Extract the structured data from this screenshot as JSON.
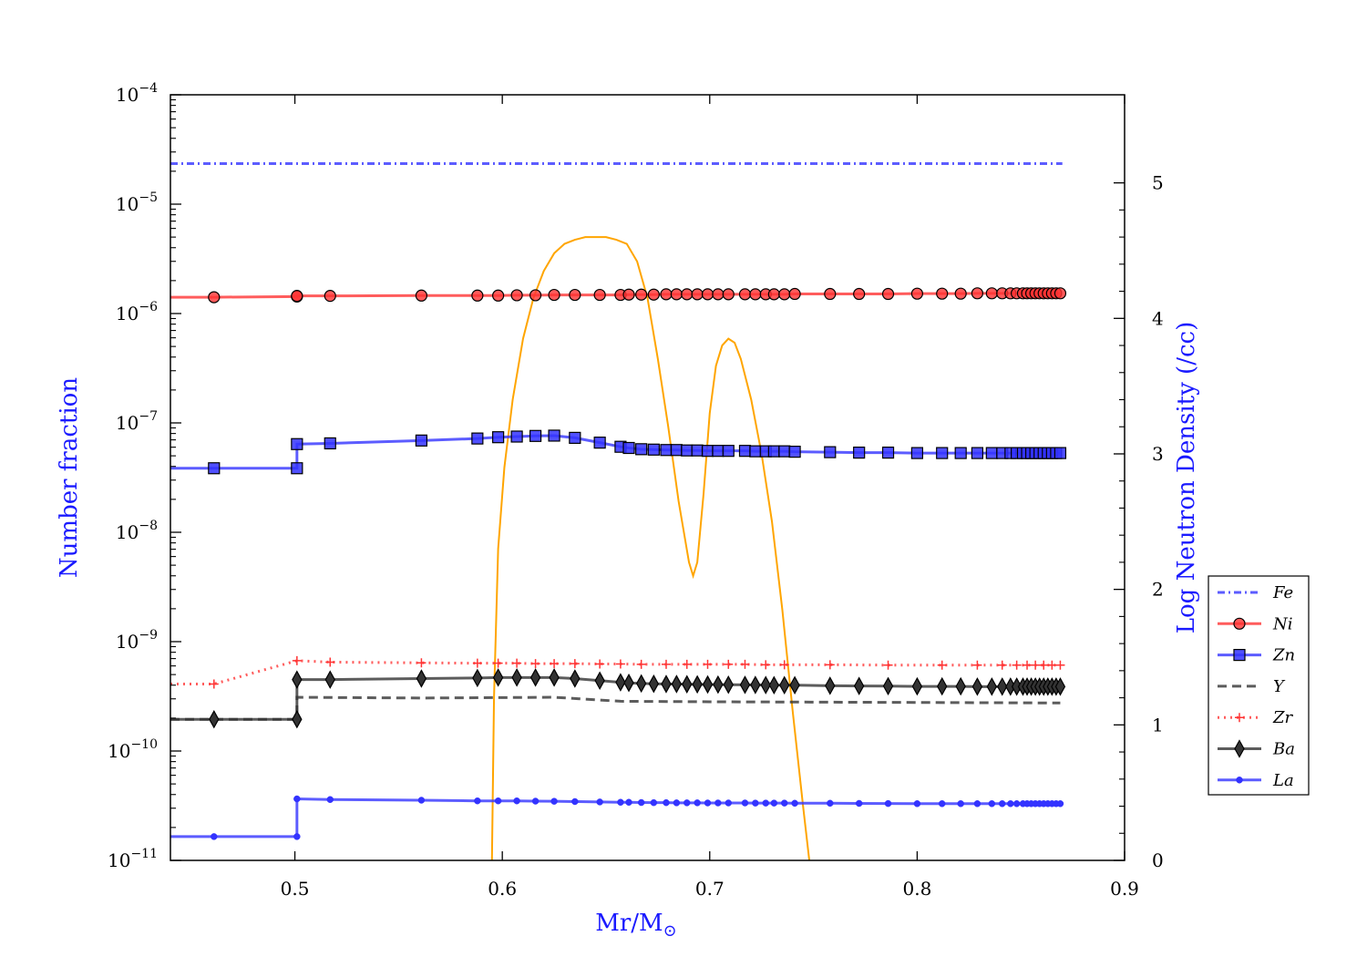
{
  "chart_data": {
    "type": "line",
    "xlabel": "Mr/M",
    "xlabel_sub": "⊙",
    "ylabel": "Number fraction",
    "y2label": "Log Neutron Density (/cc)",
    "xlim": [
      0.44,
      0.9
    ],
    "ylim_log10": [
      -11,
      -4
    ],
    "y2lim": [
      0,
      5.65
    ],
    "yscale": "log",
    "x_ticks": [
      0.5,
      0.6,
      0.7,
      0.8,
      0.9
    ],
    "x_tick_labels": [
      "0.5",
      "0.6",
      "0.7",
      "0.8",
      "0.9"
    ],
    "y_ticks_log10": [
      -11,
      -10,
      -9,
      -8,
      -7,
      -6,
      -5,
      -4
    ],
    "y_tick_base": "10",
    "y_tick_exponents": [
      "−11",
      "−10",
      "−9",
      "−8",
      "−7",
      "−6",
      "−5",
      "−4"
    ],
    "y2_ticks": [
      0,
      1,
      2,
      3,
      4,
      5
    ],
    "y2_tick_labels": [
      "0",
      "1",
      "2",
      "3",
      "4",
      "5"
    ],
    "legend_position": "lower-right",
    "colors": {
      "blue": "#3333ff",
      "red": "#ff3333",
      "dark": "#333333",
      "orange": "#ffa500"
    },
    "series": [
      {
        "name": "Fe",
        "axis": "left",
        "style": "dashdot",
        "marker": "none",
        "color": "#3333ff",
        "x": [
          0.44,
          0.87
        ],
        "y": [
          2.35e-05,
          2.35e-05
        ]
      },
      {
        "name": "Ni",
        "axis": "left",
        "style": "solid",
        "marker": "circle",
        "color": "#ff3333",
        "x": [
          0.44,
          0.461,
          0.501,
          0.501,
          0.517,
          0.561,
          0.588,
          0.598,
          0.607,
          0.616,
          0.625,
          0.635,
          0.647,
          0.657,
          0.661,
          0.667,
          0.673,
          0.679,
          0.684,
          0.689,
          0.694,
          0.699,
          0.704,
          0.709,
          0.717,
          0.722,
          0.727,
          0.731,
          0.736,
          0.741,
          0.758,
          0.772,
          0.786,
          0.8,
          0.812,
          0.821,
          0.829,
          0.836,
          0.841,
          0.845,
          0.848,
          0.851,
          0.853,
          0.855,
          0.857,
          0.859,
          0.861,
          0.863,
          0.865,
          0.867,
          0.869
        ],
        "y": [
          1.41e-06,
          1.41e-06,
          1.43e-06,
          1.45e-06,
          1.45e-06,
          1.46e-06,
          1.46e-06,
          1.46e-06,
          1.47e-06,
          1.47e-06,
          1.48e-06,
          1.48e-06,
          1.48e-06,
          1.48e-06,
          1.49e-06,
          1.49e-06,
          1.49e-06,
          1.5e-06,
          1.5e-06,
          1.5e-06,
          1.5e-06,
          1.5e-06,
          1.5e-06,
          1.5e-06,
          1.5e-06,
          1.5e-06,
          1.5e-06,
          1.5e-06,
          1.5e-06,
          1.51e-06,
          1.51e-06,
          1.51e-06,
          1.51e-06,
          1.52e-06,
          1.52e-06,
          1.52e-06,
          1.53e-06,
          1.53e-06,
          1.53e-06,
          1.53e-06,
          1.53e-06,
          1.53e-06,
          1.53e-06,
          1.53e-06,
          1.53e-06,
          1.53e-06,
          1.53e-06,
          1.53e-06,
          1.53e-06,
          1.53e-06,
          1.53e-06
        ]
      },
      {
        "name": "Zn",
        "axis": "left",
        "style": "solid",
        "marker": "square",
        "color": "#3333ff",
        "x": [
          0.44,
          0.461,
          0.501,
          0.501,
          0.517,
          0.561,
          0.588,
          0.598,
          0.607,
          0.616,
          0.625,
          0.635,
          0.647,
          0.657,
          0.661,
          0.667,
          0.673,
          0.679,
          0.684,
          0.689,
          0.694,
          0.699,
          0.704,
          0.709,
          0.717,
          0.722,
          0.727,
          0.731,
          0.736,
          0.741,
          0.758,
          0.772,
          0.786,
          0.8,
          0.812,
          0.821,
          0.829,
          0.836,
          0.841,
          0.845,
          0.848,
          0.851,
          0.853,
          0.855,
          0.857,
          0.859,
          0.861,
          0.863,
          0.865,
          0.867,
          0.869
        ],
        "y": [
          3.85e-08,
          3.85e-08,
          3.85e-08,
          6.4e-08,
          6.5e-08,
          6.9e-08,
          7.2e-08,
          7.4e-08,
          7.5e-08,
          7.6e-08,
          7.65e-08,
          7.3e-08,
          6.6e-08,
          6.05e-08,
          5.9e-08,
          5.75e-08,
          5.7e-08,
          5.65e-08,
          5.65e-08,
          5.6e-08,
          5.6e-08,
          5.55e-08,
          5.55e-08,
          5.55e-08,
          5.55e-08,
          5.5e-08,
          5.5e-08,
          5.5e-08,
          5.5e-08,
          5.45e-08,
          5.4e-08,
          5.35e-08,
          5.35e-08,
          5.3e-08,
          5.3e-08,
          5.3e-08,
          5.3e-08,
          5.3e-08,
          5.3e-08,
          5.3e-08,
          5.3e-08,
          5.3e-08,
          5.3e-08,
          5.3e-08,
          5.3e-08,
          5.3e-08,
          5.3e-08,
          5.3e-08,
          5.3e-08,
          5.3e-08,
          5.3e-08
        ]
      },
      {
        "name": "Y",
        "axis": "left",
        "style": "dashed",
        "marker": "none",
        "color": "#333333",
        "x": [
          0.44,
          0.501,
          0.501,
          0.561,
          0.625,
          0.657,
          0.7,
          0.75,
          0.8,
          0.869
        ],
        "y": [
          1.95e-10,
          1.95e-10,
          3.1e-10,
          3.05e-10,
          3.1e-10,
          2.85e-10,
          2.82e-10,
          2.8e-10,
          2.78e-10,
          2.75e-10
        ]
      },
      {
        "name": "Zr",
        "axis": "left",
        "style": "dotted",
        "marker": "plus",
        "color": "#ff3333",
        "x": [
          0.44,
          0.461,
          0.501,
          0.517,
          0.561,
          0.588,
          0.598,
          0.607,
          0.616,
          0.625,
          0.635,
          0.647,
          0.657,
          0.667,
          0.679,
          0.689,
          0.699,
          0.709,
          0.717,
          0.727,
          0.736,
          0.758,
          0.786,
          0.812,
          0.829,
          0.841,
          0.848,
          0.853,
          0.857,
          0.861,
          0.865,
          0.869
        ],
        "y": [
          4.1e-10,
          4.1e-10,
          6.7e-10,
          6.5e-10,
          6.4e-10,
          6.35e-10,
          6.35e-10,
          6.35e-10,
          6.3e-10,
          6.3e-10,
          6.3e-10,
          6.25e-10,
          6.25e-10,
          6.2e-10,
          6.2e-10,
          6.2e-10,
          6.2e-10,
          6.2e-10,
          6.2e-10,
          6.15e-10,
          6.15e-10,
          6.15e-10,
          6.1e-10,
          6.1e-10,
          6.1e-10,
          6.1e-10,
          6.1e-10,
          6.1e-10,
          6.1e-10,
          6.1e-10,
          6.1e-10,
          6.1e-10
        ]
      },
      {
        "name": "Ba",
        "axis": "left",
        "style": "solid",
        "marker": "diamond",
        "color": "#333333",
        "x": [
          0.44,
          0.461,
          0.501,
          0.501,
          0.517,
          0.561,
          0.588,
          0.598,
          0.607,
          0.616,
          0.625,
          0.635,
          0.647,
          0.657,
          0.661,
          0.667,
          0.673,
          0.679,
          0.684,
          0.689,
          0.694,
          0.699,
          0.704,
          0.709,
          0.717,
          0.722,
          0.727,
          0.731,
          0.736,
          0.741,
          0.758,
          0.772,
          0.786,
          0.8,
          0.812,
          0.821,
          0.829,
          0.836,
          0.841,
          0.845,
          0.848,
          0.851,
          0.853,
          0.855,
          0.857,
          0.859,
          0.861,
          0.863,
          0.865,
          0.867,
          0.869
        ],
        "y": [
          1.95e-10,
          1.95e-10,
          1.95e-10,
          4.5e-10,
          4.5e-10,
          4.6e-10,
          4.65e-10,
          4.7e-10,
          4.7e-10,
          4.7e-10,
          4.7e-10,
          4.6e-10,
          4.4e-10,
          4.25e-10,
          4.2e-10,
          4.15e-10,
          4.12e-10,
          4.1e-10,
          4.1e-10,
          4.08e-10,
          4.07e-10,
          4.06e-10,
          4.05e-10,
          4.04e-10,
          4.03e-10,
          4.02e-10,
          4.01e-10,
          4e-10,
          4e-10,
          4e-10,
          3.95e-10,
          3.93e-10,
          3.92e-10,
          3.9e-10,
          3.9e-10,
          3.9e-10,
          3.88e-10,
          3.88e-10,
          3.88e-10,
          3.88e-10,
          3.88e-10,
          3.88e-10,
          3.88e-10,
          3.88e-10,
          3.88e-10,
          3.88e-10,
          3.88e-10,
          3.88e-10,
          3.88e-10,
          3.88e-10,
          3.88e-10
        ]
      },
      {
        "name": "La",
        "axis": "left",
        "style": "solid",
        "marker": "dot",
        "color": "#3333ff",
        "x": [
          0.44,
          0.461,
          0.501,
          0.501,
          0.517,
          0.561,
          0.588,
          0.598,
          0.607,
          0.616,
          0.625,
          0.635,
          0.647,
          0.657,
          0.661,
          0.667,
          0.673,
          0.679,
          0.684,
          0.689,
          0.694,
          0.699,
          0.704,
          0.709,
          0.717,
          0.722,
          0.727,
          0.731,
          0.736,
          0.741,
          0.758,
          0.772,
          0.786,
          0.8,
          0.812,
          0.821,
          0.829,
          0.836,
          0.841,
          0.845,
          0.848,
          0.851,
          0.853,
          0.855,
          0.857,
          0.859,
          0.861,
          0.863,
          0.865,
          0.867,
          0.869
        ],
        "y": [
          1.65e-11,
          1.65e-11,
          1.65e-11,
          3.65e-11,
          3.6e-11,
          3.55e-11,
          3.5e-11,
          3.5e-11,
          3.5e-11,
          3.48e-11,
          3.47e-11,
          3.45e-11,
          3.42e-11,
          3.4e-11,
          3.4e-11,
          3.38e-11,
          3.37e-11,
          3.37e-11,
          3.36e-11,
          3.36e-11,
          3.36e-11,
          3.35e-11,
          3.35e-11,
          3.35e-11,
          3.35e-11,
          3.34e-11,
          3.34e-11,
          3.34e-11,
          3.34e-11,
          3.33e-11,
          3.33e-11,
          3.32e-11,
          3.31e-11,
          3.3e-11,
          3.3e-11,
          3.3e-11,
          3.3e-11,
          3.3e-11,
          3.3e-11,
          3.3e-11,
          3.3e-11,
          3.3e-11,
          3.3e-11,
          3.3e-11,
          3.3e-11,
          3.3e-11,
          3.3e-11,
          3.3e-11,
          3.3e-11,
          3.3e-11,
          3.3e-11
        ]
      },
      {
        "name": "",
        "axis": "right",
        "style": "solid",
        "marker": "none",
        "color": "#ffa500",
        "x": [
          0.595,
          0.596,
          0.598,
          0.601,
          0.605,
          0.61,
          0.615,
          0.62,
          0.625,
          0.63,
          0.635,
          0.64,
          0.645,
          0.65,
          0.655,
          0.66,
          0.665,
          0.67,
          0.675,
          0.68,
          0.685,
          0.69,
          0.692,
          0.694,
          0.697,
          0.7,
          0.703,
          0.706,
          0.709,
          0.712,
          0.715,
          0.72,
          0.725,
          0.73,
          0.735,
          0.74,
          0.745,
          0.748
        ],
        "y": [
          0,
          1.2,
          2.3,
          2.9,
          3.4,
          3.85,
          4.15,
          4.35,
          4.48,
          4.55,
          4.58,
          4.6,
          4.6,
          4.6,
          4.58,
          4.55,
          4.42,
          4.15,
          3.7,
          3.2,
          2.65,
          2.2,
          2.1,
          2.2,
          2.7,
          3.3,
          3.65,
          3.8,
          3.85,
          3.82,
          3.7,
          3.4,
          3.0,
          2.5,
          1.85,
          1.1,
          0.4,
          0
        ]
      }
    ]
  }
}
